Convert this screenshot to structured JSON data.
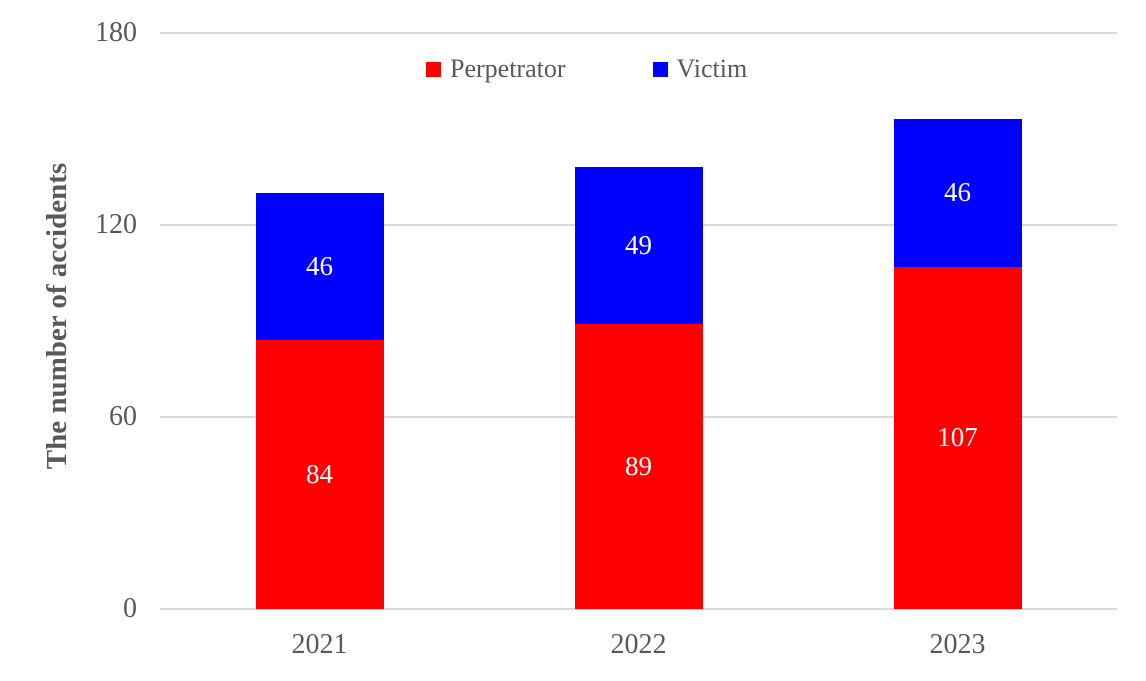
{
  "chart_data": {
    "type": "bar",
    "stacked": true,
    "categories": [
      "2021",
      "2022",
      "2023"
    ],
    "series": [
      {
        "name": "Perpetrator",
        "color": "#ff0000",
        "values": [
          84,
          89,
          107
        ]
      },
      {
        "name": "Victim",
        "color": "#0000ff",
        "values": [
          46,
          49,
          46
        ]
      }
    ],
    "ylabel": "The number of accidents",
    "xlabel": "",
    "ylim": [
      0,
      180
    ],
    "yticks": [
      0,
      60,
      120,
      180
    ],
    "grid": true,
    "legend_position": "top-center",
    "colors": {
      "axis_text": "#595959",
      "gridline": "#d9d9d9",
      "value_label": "#ffffff",
      "background": "#ffffff"
    }
  }
}
